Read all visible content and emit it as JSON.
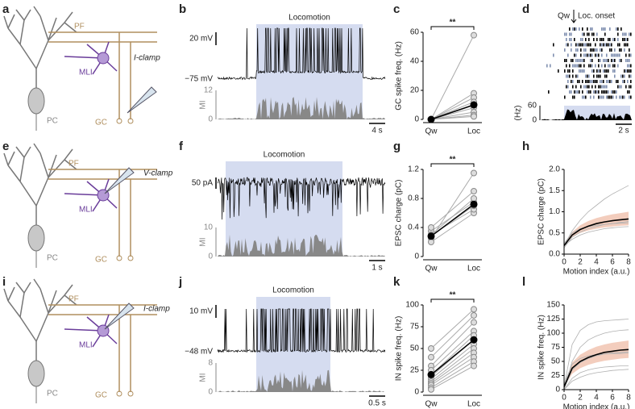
{
  "panel_labels": [
    "a",
    "b",
    "c",
    "d",
    "e",
    "f",
    "g",
    "h",
    "i",
    "j",
    "k",
    "l"
  ],
  "diagrams": [
    {
      "pf": "PF",
      "mli": "MLI",
      "pc": "PC",
      "gc": "GC",
      "clamp": "I-clamp"
    },
    {
      "pf": "PF",
      "mli": "MLI",
      "pc": "PC",
      "gc": "GC",
      "clamp": "V-clamp"
    },
    {
      "pf": "PF",
      "mli": "MLI",
      "pc": "PC",
      "gc": "GC",
      "clamp": "I-clamp"
    }
  ],
  "traces": [
    {
      "title": "Locomotion",
      "scale": "20 mV",
      "baseline": "−75 mV",
      "mi_label": "MI",
      "mi_ticks": [
        12,
        0
      ],
      "time_scale": "4 s"
    },
    {
      "title": "Locomotion",
      "scale": "50 pA",
      "mi_label": "MI",
      "mi_ticks": [
        10,
        0
      ],
      "time_scale": "1 s"
    },
    {
      "title": "Locomotion",
      "scale": "10 mV",
      "baseline": "−48 mV",
      "mi_label": "MI",
      "mi_ticks": [
        8,
        0
      ],
      "time_scale": "0.5 s"
    }
  ],
  "raster": {
    "condition": "Qw",
    "onset": "Loc. onset",
    "axis_label": "(Hz)",
    "yticks": [
      60,
      0
    ],
    "time_scale": "2 s"
  },
  "chart_data": [
    {
      "type": "paired",
      "ylabel": "GC spike freq. (Hz)",
      "categories": [
        "Qw",
        "Loc"
      ],
      "significance": "**",
      "ylim": [
        0,
        60
      ],
      "yticks": [
        0,
        20,
        40,
        60
      ],
      "pairs": [
        [
          0,
          58
        ],
        [
          0,
          18
        ],
        [
          0,
          15
        ],
        [
          0,
          12
        ],
        [
          0,
          10
        ],
        [
          0,
          8
        ],
        [
          0,
          5
        ],
        [
          0,
          3
        ],
        [
          0,
          2
        ]
      ],
      "mean": [
        0,
        10
      ]
    },
    {
      "type": "paired",
      "ylabel": "EPSC charge (pC)",
      "categories": [
        "Qw",
        "Loc"
      ],
      "significance": "**",
      "ylim": [
        0,
        1.2
      ],
      "yticks": [
        0,
        0.4,
        0.8,
        1.2
      ],
      "pairs": [
        [
          0.35,
          0.75
        ],
        [
          0.3,
          0.8
        ],
        [
          0.25,
          1.15
        ],
        [
          0.2,
          0.6
        ],
        [
          0.3,
          0.65
        ],
        [
          0.28,
          0.7
        ],
        [
          0.4,
          0.9
        ]
      ],
      "mean": [
        0.28,
        0.72
      ]
    },
    {
      "type": "curves",
      "ylabel": "EPSC charge (pC)",
      "xlabel": "Motion index (a.u.)",
      "xlim": [
        0,
        8
      ],
      "xticks": [
        0,
        2,
        4,
        6,
        8
      ],
      "ylim": [
        0,
        2
      ],
      "yticks": [
        {
          "value": 0,
          "label": "0.0"
        },
        {
          "value": 0.5,
          "label": "0.5"
        },
        {
          "value": 1,
          "label": "1.0"
        },
        {
          "value": 1.5,
          "label": "1.5"
        },
        {
          "value": 2,
          "label": "2.0"
        }
      ],
      "x": [
        0,
        1,
        2,
        3,
        4,
        5,
        6,
        7,
        8
      ],
      "band": {
        "color": "#f3cdbd",
        "lower": [
          0.2,
          0.4,
          0.5,
          0.56,
          0.6,
          0.63,
          0.65,
          0.67,
          0.68
        ],
        "upper": [
          0.2,
          0.52,
          0.68,
          0.78,
          0.85,
          0.9,
          0.94,
          0.97,
          1.0
        ]
      },
      "series": [
        {
          "color": "#b0b0b0",
          "values": [
            0.2,
            0.55,
            0.8,
            1.0,
            1.15,
            1.3,
            1.42,
            1.52,
            1.62
          ]
        },
        {
          "color": "#b0b0b0",
          "values": [
            0.15,
            0.4,
            0.52,
            0.6,
            0.65,
            0.7,
            0.72,
            0.75,
            0.77
          ]
        },
        {
          "color": "#b0b0b0",
          "values": [
            0.25,
            0.5,
            0.6,
            0.65,
            0.68,
            0.7,
            0.72,
            0.73,
            0.74
          ]
        },
        {
          "color": "#b0b0b0",
          "values": [
            0.2,
            0.35,
            0.45,
            0.52,
            0.56,
            0.6,
            0.62,
            0.64,
            0.65
          ]
        },
        {
          "color": "#000000",
          "values": [
            0.2,
            0.45,
            0.58,
            0.66,
            0.72,
            0.76,
            0.79,
            0.81,
            0.83
          ]
        }
      ]
    },
    {
      "type": "paired",
      "ylabel": "IN spike freq. (Hz)",
      "categories": [
        "Qw",
        "Loc"
      ],
      "significance": "**",
      "ylim": [
        0,
        100
      ],
      "yticks": [
        0,
        25,
        50,
        75,
        100
      ],
      "pairs": [
        [
          50,
          95
        ],
        [
          40,
          88
        ],
        [
          30,
          80
        ],
        [
          25,
          70
        ],
        [
          20,
          65
        ],
        [
          18,
          60
        ],
        [
          15,
          55
        ],
        [
          12,
          50
        ],
        [
          10,
          45
        ],
        [
          8,
          40
        ],
        [
          5,
          35
        ],
        [
          3,
          30
        ]
      ],
      "mean": [
        20,
        60
      ]
    },
    {
      "type": "curves",
      "ylabel": "IN spike freq. (Hz)",
      "xlabel": "Motion index (a.u.)",
      "xlim": [
        0,
        8
      ],
      "xticks": [
        0,
        2,
        4,
        6,
        8
      ],
      "ylim": [
        0,
        150
      ],
      "yticks": [
        0,
        25,
        50,
        75,
        100,
        125,
        150
      ],
      "x": [
        0,
        1,
        2,
        3,
        4,
        5,
        6,
        7,
        8
      ],
      "band": {
        "color": "#f3cdbd",
        "lower": [
          5,
          28,
          38,
          44,
          48,
          51,
          53,
          55,
          56
        ],
        "upper": [
          5,
          48,
          62,
          70,
          76,
          80,
          83,
          85,
          87
        ]
      },
      "series": [
        {
          "color": "#b0b0b0",
          "values": [
            0,
            50,
            75,
            88,
            95,
            100,
            103,
            105,
            106
          ]
        },
        {
          "color": "#b0b0b0",
          "values": [
            5,
            80,
            105,
            115,
            120,
            122,
            123,
            124,
            125
          ]
        },
        {
          "color": "#b0b0b0",
          "values": [
            0,
            20,
            30,
            35,
            38,
            40,
            41,
            42,
            42
          ]
        },
        {
          "color": "#b0b0b0",
          "values": [
            10,
            45,
            55,
            60,
            62,
            63,
            64,
            64,
            65
          ]
        },
        {
          "color": "#b0b0b0",
          "values": [
            0,
            15,
            22,
            27,
            30,
            32,
            34,
            35,
            36
          ]
        },
        {
          "color": "#b0b0b0",
          "values": [
            2,
            35,
            48,
            55,
            60,
            63,
            65,
            66,
            67
          ]
        },
        {
          "color": "#000000",
          "values": [
            5,
            38,
            50,
            57,
            62,
            66,
            68,
            70,
            71
          ]
        }
      ]
    }
  ]
}
